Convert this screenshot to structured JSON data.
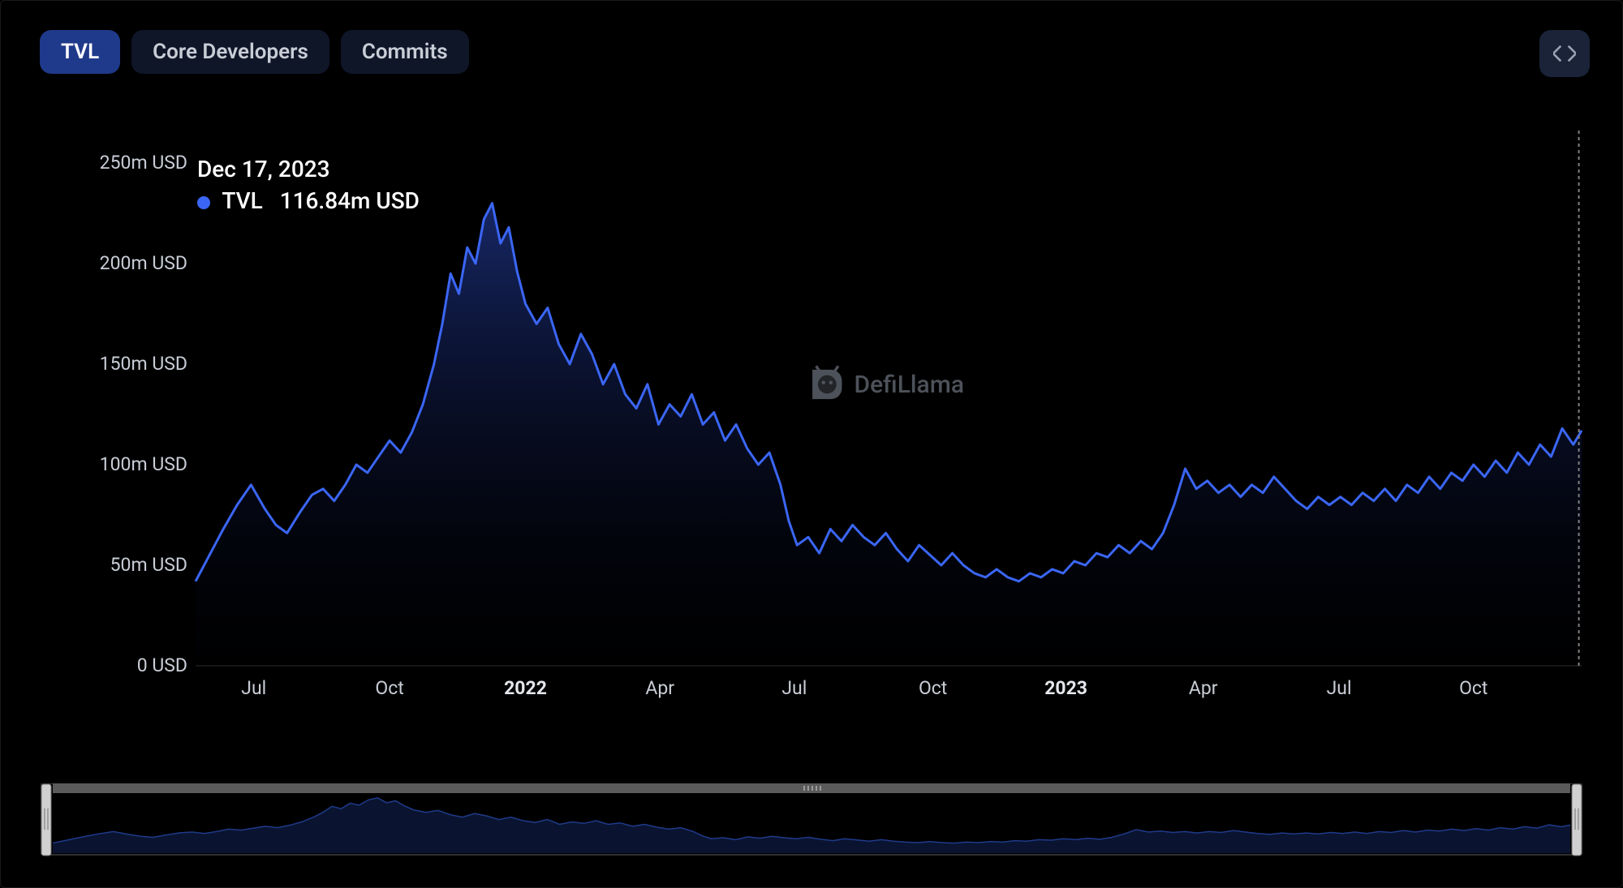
{
  "tabs": {
    "items": [
      {
        "label": "TVL",
        "active": true
      },
      {
        "label": "Core Developers",
        "active": false
      },
      {
        "label": "Commits",
        "active": false
      }
    ]
  },
  "tooltip": {
    "date": "Dec 17, 2023",
    "series_label": "TVL",
    "value": "116.84m USD",
    "dot_color": "#3b66f5"
  },
  "watermark": {
    "text": "DefiLlama"
  },
  "chart": {
    "type": "area",
    "line_color": "#3b66f5",
    "line_width": 3,
    "fill_top": "#1b2e78",
    "fill_bottom": "#030614",
    "grid_color": "#0d0d0d",
    "background": "#000000",
    "cursor_line_color": "#808080",
    "ylim": [
      0,
      250
    ],
    "y_ticks": [
      {
        "v": 0,
        "label": "0 USD"
      },
      {
        "v": 50,
        "label": "50m USD"
      },
      {
        "v": 100,
        "label": "100m USD"
      },
      {
        "v": 150,
        "label": "150m USD"
      },
      {
        "v": 200,
        "label": "200m USD"
      },
      {
        "v": 250,
        "label": "250m USD"
      }
    ],
    "x_ticks": [
      {
        "t": 0.042,
        "label": "Jul",
        "bold": false
      },
      {
        "t": 0.14,
        "label": "Oct",
        "bold": false
      },
      {
        "t": 0.238,
        "label": "2022",
        "bold": true
      },
      {
        "t": 0.335,
        "label": "Apr",
        "bold": false
      },
      {
        "t": 0.432,
        "label": "Jul",
        "bold": false
      },
      {
        "t": 0.532,
        "label": "Oct",
        "bold": false
      },
      {
        "t": 0.628,
        "label": "2023",
        "bold": true
      },
      {
        "t": 0.727,
        "label": "Apr",
        "bold": false
      },
      {
        "t": 0.825,
        "label": "Jul",
        "bold": false
      },
      {
        "t": 0.922,
        "label": "Oct",
        "bold": false
      }
    ],
    "cursor_t": 0.998,
    "series": [
      [
        0.0,
        42
      ],
      [
        0.01,
        55
      ],
      [
        0.02,
        68
      ],
      [
        0.03,
        80
      ],
      [
        0.04,
        90
      ],
      [
        0.05,
        78
      ],
      [
        0.058,
        70
      ],
      [
        0.066,
        66
      ],
      [
        0.075,
        76
      ],
      [
        0.084,
        85
      ],
      [
        0.092,
        88
      ],
      [
        0.1,
        82
      ],
      [
        0.108,
        90
      ],
      [
        0.116,
        100
      ],
      [
        0.124,
        96
      ],
      [
        0.132,
        104
      ],
      [
        0.14,
        112
      ],
      [
        0.148,
        106
      ],
      [
        0.156,
        116
      ],
      [
        0.164,
        130
      ],
      [
        0.172,
        150
      ],
      [
        0.178,
        170
      ],
      [
        0.184,
        195
      ],
      [
        0.19,
        185
      ],
      [
        0.196,
        208
      ],
      [
        0.202,
        200
      ],
      [
        0.208,
        222
      ],
      [
        0.214,
        230
      ],
      [
        0.22,
        210
      ],
      [
        0.226,
        218
      ],
      [
        0.232,
        196
      ],
      [
        0.238,
        180
      ],
      [
        0.246,
        170
      ],
      [
        0.254,
        178
      ],
      [
        0.262,
        160
      ],
      [
        0.27,
        150
      ],
      [
        0.278,
        165
      ],
      [
        0.286,
        155
      ],
      [
        0.294,
        140
      ],
      [
        0.302,
        150
      ],
      [
        0.31,
        135
      ],
      [
        0.318,
        128
      ],
      [
        0.326,
        140
      ],
      [
        0.334,
        120
      ],
      [
        0.342,
        130
      ],
      [
        0.35,
        124
      ],
      [
        0.358,
        135
      ],
      [
        0.366,
        120
      ],
      [
        0.374,
        126
      ],
      [
        0.382,
        112
      ],
      [
        0.39,
        120
      ],
      [
        0.398,
        108
      ],
      [
        0.406,
        100
      ],
      [
        0.414,
        106
      ],
      [
        0.422,
        90
      ],
      [
        0.428,
        72
      ],
      [
        0.434,
        60
      ],
      [
        0.442,
        64
      ],
      [
        0.45,
        56
      ],
      [
        0.458,
        68
      ],
      [
        0.466,
        62
      ],
      [
        0.474,
        70
      ],
      [
        0.482,
        64
      ],
      [
        0.49,
        60
      ],
      [
        0.498,
        66
      ],
      [
        0.506,
        58
      ],
      [
        0.514,
        52
      ],
      [
        0.522,
        60
      ],
      [
        0.53,
        55
      ],
      [
        0.538,
        50
      ],
      [
        0.546,
        56
      ],
      [
        0.554,
        50
      ],
      [
        0.562,
        46
      ],
      [
        0.57,
        44
      ],
      [
        0.578,
        48
      ],
      [
        0.586,
        44
      ],
      [
        0.594,
        42
      ],
      [
        0.602,
        46
      ],
      [
        0.61,
        44
      ],
      [
        0.618,
        48
      ],
      [
        0.626,
        46
      ],
      [
        0.634,
        52
      ],
      [
        0.642,
        50
      ],
      [
        0.65,
        56
      ],
      [
        0.658,
        54
      ],
      [
        0.666,
        60
      ],
      [
        0.674,
        56
      ],
      [
        0.682,
        62
      ],
      [
        0.69,
        58
      ],
      [
        0.698,
        66
      ],
      [
        0.706,
        80
      ],
      [
        0.714,
        98
      ],
      [
        0.722,
        88
      ],
      [
        0.73,
        92
      ],
      [
        0.738,
        86
      ],
      [
        0.746,
        90
      ],
      [
        0.754,
        84
      ],
      [
        0.762,
        90
      ],
      [
        0.77,
        86
      ],
      [
        0.778,
        94
      ],
      [
        0.786,
        88
      ],
      [
        0.794,
        82
      ],
      [
        0.802,
        78
      ],
      [
        0.81,
        84
      ],
      [
        0.818,
        80
      ],
      [
        0.826,
        84
      ],
      [
        0.834,
        80
      ],
      [
        0.842,
        86
      ],
      [
        0.85,
        82
      ],
      [
        0.858,
        88
      ],
      [
        0.866,
        82
      ],
      [
        0.874,
        90
      ],
      [
        0.882,
        86
      ],
      [
        0.89,
        94
      ],
      [
        0.898,
        88
      ],
      [
        0.906,
        96
      ],
      [
        0.914,
        92
      ],
      [
        0.922,
        100
      ],
      [
        0.93,
        94
      ],
      [
        0.938,
        102
      ],
      [
        0.946,
        96
      ],
      [
        0.954,
        106
      ],
      [
        0.962,
        100
      ],
      [
        0.97,
        110
      ],
      [
        0.978,
        104
      ],
      [
        0.986,
        118
      ],
      [
        0.994,
        110
      ],
      [
        1.0,
        117
      ]
    ]
  },
  "brush": {
    "track_color": "#5a5a5a",
    "handle_color": "#d0d0d0",
    "border_color": "#303030",
    "mini_line_color": "#1f3a8a",
    "mini_fill": "#0a1430",
    "background": "#000000"
  }
}
